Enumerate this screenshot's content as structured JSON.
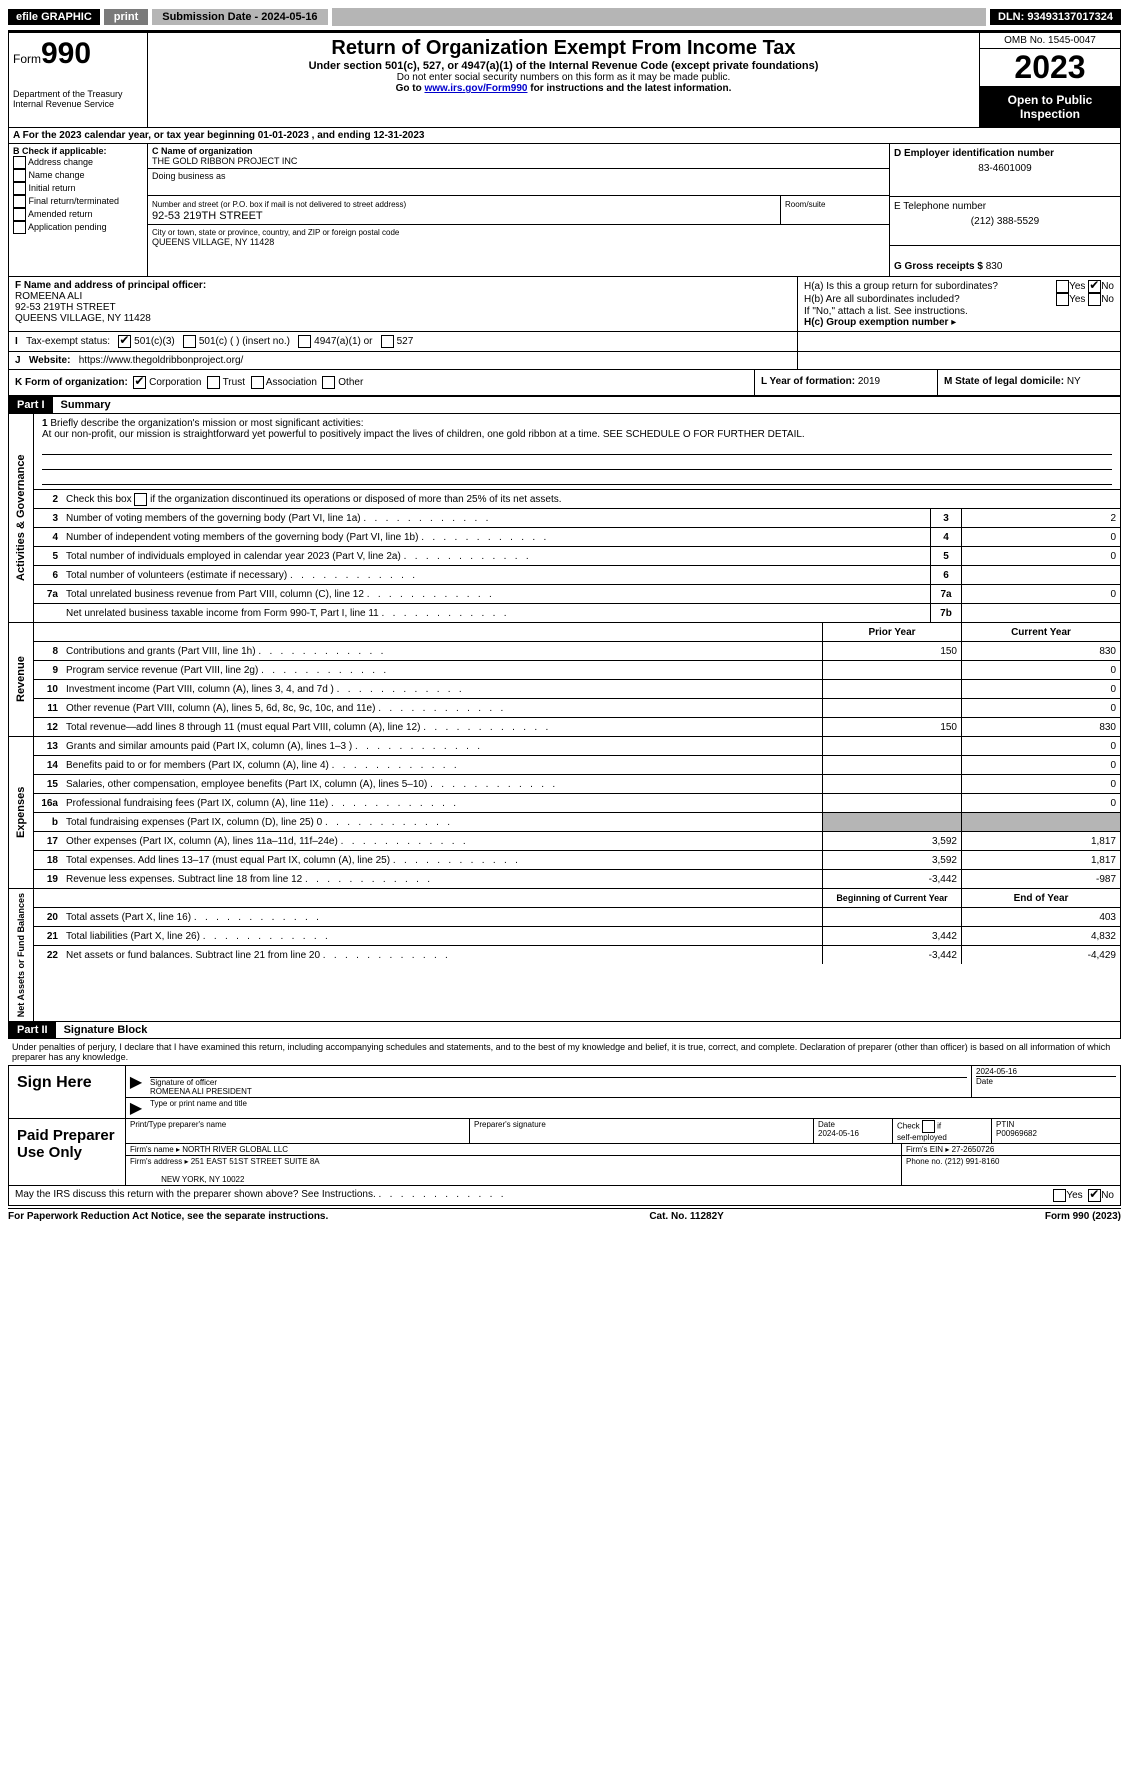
{
  "topbar": {
    "efile": "efile GRAPHIC",
    "print": "print",
    "subdate_label": "Submission Date - ",
    "subdate": "2024-05-16",
    "dln_label": "DLN: ",
    "dln": "93493137017324"
  },
  "header": {
    "form_label": "Form",
    "form_num": "990",
    "dept1": "Department of the Treasury",
    "dept2": "Internal Revenue Service",
    "title": "Return of Organization Exempt From Income Tax",
    "sub": "Under section 501(c), 527, or 4947(a)(1) of the Internal Revenue Code (except private foundations)",
    "note1": "Do not enter social security numbers on this form as it may be made public.",
    "note2_pre": "Go to ",
    "note2_link": "www.irs.gov/Form990",
    "note2_post": " for instructions and the latest information.",
    "omb": "OMB No. 1545-0047",
    "year": "2023",
    "open1": "Open to Public",
    "open2": "Inspection"
  },
  "rowA": {
    "pre": "A For the 2023 calendar year, or tax year beginning ",
    "begin": "01-01-2023",
    "mid": "   , and ending ",
    "end": "12-31-2023"
  },
  "colB": {
    "title": "B Check if applicable:",
    "opts": [
      "Address change",
      "Name change",
      "Initial return",
      "Final return/terminated",
      "Amended return",
      "Application pending"
    ]
  },
  "colC": {
    "name_lbl": "C Name of organization",
    "name": "THE GOLD RIBBON PROJECT INC",
    "dba_lbl": "Doing business as",
    "street_lbl": "Number and street (or P.O. box if mail is not delivered to street address)",
    "street": "92-53 219TH STREET",
    "suite_lbl": "Room/suite",
    "city_lbl": "City or town, state or province, country, and ZIP or foreign postal code",
    "city": "QUEENS VILLAGE, NY  11428"
  },
  "colD": {
    "ein_lbl": "D Employer identification number",
    "ein": "83-4601009",
    "phone_lbl": "E Telephone number",
    "phone": "(212) 388-5529",
    "gross_lbl": "G Gross receipts $ ",
    "gross": "830"
  },
  "rowF": {
    "lbl": "F  Name and address of principal officer:",
    "name": "ROMEENA ALI",
    "street": "92-53 219TH STREET",
    "city": "QUEENS VILLAGE, NY  11428"
  },
  "rowH": {
    "ha": "H(a)  Is this a group return for subordinates?",
    "hb": "H(b)  Are all subordinates included?",
    "hb_note": "If \"No,\" attach a list. See instructions.",
    "hc": "H(c)  Group exemption number ",
    "yes": "Yes",
    "no": "No"
  },
  "rowI": {
    "lbl": "Tax-exempt status:",
    "o1": "501(c)(3)",
    "o2": "501(c) (  ) (insert no.)",
    "o3": "4947(a)(1) or",
    "o4": "527"
  },
  "rowJ": {
    "lbl": "Website: ",
    "url": "https://www.thegoldribbonproject.org/"
  },
  "rowK": {
    "lbl": "K Form of organization:",
    "o1": "Corporation",
    "o2": "Trust",
    "o3": "Association",
    "o4": "Other"
  },
  "rowL": {
    "lbl": "L Year of formation: ",
    "val": "2019"
  },
  "rowM": {
    "lbl": "M State of legal domicile: ",
    "val": "NY"
  },
  "part1": {
    "tab": "Part I",
    "title": "Summary",
    "q1_lbl": "1",
    "q1": "Briefly describe the organization's mission or most significant activities:",
    "mission": "At our non-profit, our mission is straightforward yet powerful to positively impact the lives of children, one gold ribbon at a time. SEE SCHEDULE O FOR FURTHER DETAIL.",
    "q2_lbl": "2",
    "q2": "Check this box   if the organization discontinued its operations or disposed of more than 25% of its net assets.",
    "side_gov": "Activities & Governance",
    "side_rev": "Revenue",
    "side_exp": "Expenses",
    "side_net": "Net Assets or Fund Balances",
    "lines_gov": [
      {
        "n": "3",
        "d": "Number of voting members of the governing body (Part VI, line 1a)",
        "box": "3",
        "v": "2"
      },
      {
        "n": "4",
        "d": "Number of independent voting members of the governing body (Part VI, line 1b)",
        "box": "4",
        "v": "0"
      },
      {
        "n": "5",
        "d": "Total number of individuals employed in calendar year 2023 (Part V, line 2a)",
        "box": "5",
        "v": "0"
      },
      {
        "n": "6",
        "d": "Total number of volunteers (estimate if necessary)",
        "box": "6",
        "v": ""
      },
      {
        "n": "7a",
        "d": "Total unrelated business revenue from Part VIII, column (C), line 12",
        "box": "7a",
        "v": "0"
      },
      {
        "n": "",
        "d": "Net unrelated business taxable income from Form 990-T, Part I, line 11",
        "box": "7b",
        "v": ""
      }
    ],
    "hdr_prior": "Prior Year",
    "hdr_current": "Current Year",
    "lines_rev": [
      {
        "n": "8",
        "d": "Contributions and grants (Part VIII, line 1h)",
        "p": "150",
        "c": "830"
      },
      {
        "n": "9",
        "d": "Program service revenue (Part VIII, line 2g)",
        "p": "",
        "c": "0"
      },
      {
        "n": "10",
        "d": "Investment income (Part VIII, column (A), lines 3, 4, and 7d )",
        "p": "",
        "c": "0"
      },
      {
        "n": "11",
        "d": "Other revenue (Part VIII, column (A), lines 5, 6d, 8c, 9c, 10c, and 11e)",
        "p": "",
        "c": "0"
      },
      {
        "n": "12",
        "d": "Total revenue—add lines 8 through 11 (must equal Part VIII, column (A), line 12)",
        "p": "150",
        "c": "830"
      }
    ],
    "lines_exp": [
      {
        "n": "13",
        "d": "Grants and similar amounts paid (Part IX, column (A), lines 1–3 )",
        "p": "",
        "c": "0"
      },
      {
        "n": "14",
        "d": "Benefits paid to or for members (Part IX, column (A), line 4)",
        "p": "",
        "c": "0"
      },
      {
        "n": "15",
        "d": "Salaries, other compensation, employee benefits (Part IX, column (A), lines 5–10)",
        "p": "",
        "c": "0"
      },
      {
        "n": "16a",
        "d": "Professional fundraising fees (Part IX, column (A), line 11e)",
        "p": "",
        "c": "0"
      },
      {
        "n": "b",
        "d": "Total fundraising expenses (Part IX, column (D), line 25) 0",
        "p": "GREY",
        "c": "GREY"
      },
      {
        "n": "17",
        "d": "Other expenses (Part IX, column (A), lines 11a–11d, 11f–24e)",
        "p": "3,592",
        "c": "1,817"
      },
      {
        "n": "18",
        "d": "Total expenses. Add lines 13–17 (must equal Part IX, column (A), line 25)",
        "p": "3,592",
        "c": "1,817"
      },
      {
        "n": "19",
        "d": "Revenue less expenses. Subtract line 18 from line 12",
        "p": "-3,442",
        "c": "-987"
      }
    ],
    "hdr_begin": "Beginning of Current Year",
    "hdr_end": "End of Year",
    "lines_net": [
      {
        "n": "20",
        "d": "Total assets (Part X, line 16)",
        "p": "",
        "c": "403"
      },
      {
        "n": "21",
        "d": "Total liabilities (Part X, line 26)",
        "p": "3,442",
        "c": "4,832"
      },
      {
        "n": "22",
        "d": "Net assets or fund balances. Subtract line 21 from line 20",
        "p": "-3,442",
        "c": "-4,429"
      }
    ]
  },
  "part2": {
    "tab": "Part II",
    "title": "Signature Block",
    "decl": "Under penalties of perjury, I declare that I have examined this return, including accompanying schedules and statements, and to the best of my knowledge and belief, it is true, correct, and complete. Declaration of preparer (other than officer) is based on all information of which preparer has any knowledge."
  },
  "sign": {
    "here": "Sign Here",
    "sig_lbl": "Signature of officer",
    "officer": "ROMEENA ALI  PRESIDENT",
    "type_lbl": "Type or print name and title",
    "date_lbl": "Date",
    "date": "2024-05-16"
  },
  "paid": {
    "title": "Paid Preparer Use Only",
    "name_lbl": "Print/Type preparer's name",
    "sig_lbl": "Preparer's signature",
    "date_lbl": "Date",
    "date": "2024-05-16",
    "check_lbl": "Check  if self-employed",
    "ptin_lbl": "PTIN",
    "ptin": "P00969682",
    "firm_name_lbl": "Firm's name   ",
    "firm_name": "NORTH RIVER GLOBAL LLC",
    "firm_ein_lbl": "Firm's EIN  ",
    "firm_ein": "27-2650726",
    "firm_addr_lbl": "Firm's address ",
    "firm_addr1": "251 EAST 51ST STREET SUITE 8A",
    "firm_addr2": "NEW YORK, NY  10022",
    "phone_lbl": "Phone no. ",
    "phone": "(212) 991-8160"
  },
  "discuss": {
    "q": "May the IRS discuss this return with the preparer shown above? See Instructions.",
    "yes": "Yes",
    "no": "No"
  },
  "footer": {
    "left": "For Paperwork Reduction Act Notice, see the separate instructions.",
    "mid": "Cat. No. 11282Y",
    "right": "Form 990 (2023)"
  }
}
